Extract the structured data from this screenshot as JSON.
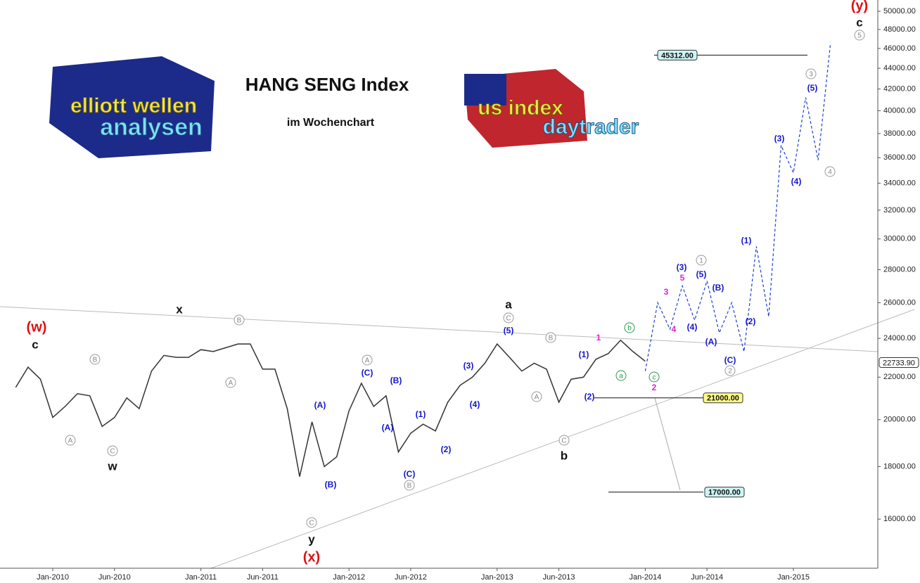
{
  "chart_data": {
    "type": "line",
    "title": "HANG SENG Index",
    "subtitle": "im Wochenchart",
    "logos": [
      [
        "elliott wellen",
        "analysen"
      ],
      [
        "us index",
        "daytrader"
      ]
    ],
    "log_scale": true,
    "ylim": [
      14330,
      51280
    ],
    "yticks": [
      {
        "value": 16000,
        "label": "16000.00"
      },
      {
        "value": 18000,
        "label": "18000.00"
      },
      {
        "value": 20000,
        "label": "20000.00"
      },
      {
        "value": 22000,
        "label": "22000.00"
      },
      {
        "value": 24000,
        "label": "24000.00"
      },
      {
        "value": 26000,
        "label": "26000.00"
      },
      {
        "value": 28000,
        "label": "28000.00"
      },
      {
        "value": 30000,
        "label": "30000.00"
      },
      {
        "value": 32000,
        "label": "32000.00"
      },
      {
        "value": 34000,
        "label": "34000.00"
      },
      {
        "value": 36000,
        "label": "36000.00"
      },
      {
        "value": 38000,
        "label": "38000.00"
      },
      {
        "value": 40000,
        "label": "40000.00"
      },
      {
        "value": 42000,
        "label": "42000.00"
      },
      {
        "value": 44000,
        "label": "44000.00"
      },
      {
        "value": 46000,
        "label": "46000.00"
      },
      {
        "value": 48000,
        "label": "48000.00"
      },
      {
        "value": 50000,
        "label": "50000.00"
      }
    ],
    "xticks": [
      {
        "value": "2010-01",
        "label": "Jan-2010"
      },
      {
        "value": "2010-06",
        "label": "Jun-2010"
      },
      {
        "value": "2011-01",
        "label": "Jan-2011"
      },
      {
        "value": "2011-06",
        "label": "Jun-2011"
      },
      {
        "value": "2012-01",
        "label": "Jan-2012"
      },
      {
        "value": "2012-06",
        "label": "Jun-2012"
      },
      {
        "value": "2013-01",
        "label": "Jan-2013"
      },
      {
        "value": "2013-06",
        "label": "Jun-2013"
      },
      {
        "value": "2014-01",
        "label": "Jan-2014"
      },
      {
        "value": "2014-06",
        "label": "Jun-2014"
      },
      {
        "value": "2015-01",
        "label": "Jan-2015"
      }
    ],
    "series": [
      {
        "color": "#333333",
        "dashed": false,
        "x": [
          "2009-10",
          "2009-11",
          "2009-12",
          "2010-01",
          "2010-02",
          "2010-03",
          "2010-04",
          "2010-05",
          "2010-06",
          "2010-07",
          "2010-08",
          "2010-09",
          "2010-10",
          "2010-11",
          "2010-12",
          "2011-01",
          "2011-02",
          "2011-03",
          "2011-04",
          "2011-05",
          "2011-06",
          "2011-07",
          "2011-08",
          "2011-09",
          "2011-10",
          "2011-11",
          "2011-12",
          "2012-01",
          "2012-02",
          "2012-03",
          "2012-04",
          "2012-05",
          "2012-06",
          "2012-07",
          "2012-08",
          "2012-09",
          "2012-10",
          "2012-11",
          "2012-12",
          "2013-01",
          "2013-02",
          "2013-03",
          "2013-04",
          "2013-05",
          "2013-06",
          "2013-07",
          "2013-08",
          "2013-09",
          "2013-10",
          "2013-11",
          "2013-12",
          "2014-01"
        ],
        "values": [
          21500,
          22500,
          21900,
          20100,
          20600,
          21200,
          21100,
          19700,
          20100,
          21000,
          20500,
          22300,
          23100,
          23000,
          23000,
          23400,
          23300,
          23500,
          23700,
          23700,
          22400,
          22400,
          20500,
          17600,
          19900,
          18000,
          18400,
          20400,
          21700,
          20600,
          21100,
          18600,
          19400,
          19800,
          19500,
          20800,
          21600,
          22000,
          22700,
          23700,
          23000,
          22300,
          22700,
          22400,
          20800,
          21900,
          22000,
          22900,
          23200,
          23900,
          23300,
          22800
        ]
      },
      {
        "color": "#1f3fd6",
        "dashed": true,
        "x": [
          "2014-01",
          "2014-02",
          "2014-03",
          "2014-04",
          "2014-05",
          "2014-06",
          "2014-07",
          "2014-08",
          "2014-09",
          "2014-10",
          "2014-11",
          "2014-12",
          "2015-01",
          "2015-02",
          "2015-03",
          "2015-04"
        ],
        "values": [
          22300,
          26000,
          24500,
          27000,
          25000,
          27300,
          24300,
          26000,
          23300,
          29500,
          25200,
          37000,
          34800,
          41200,
          35800,
          46500
        ]
      }
    ],
    "levels": [
      {
        "value": 45312,
        "label": "45312.00",
        "color": "#cdf5f5"
      },
      {
        "value": 21000,
        "label": "21000.00",
        "color": "#ffff88"
      },
      {
        "value": 17000,
        "label": "17000.00",
        "color": "#cdf5f5"
      },
      {
        "value": 22733.9,
        "label": "22733.90",
        "color": "#ffffff"
      }
    ],
    "annotations": [
      {
        "text": "(w)",
        "kind": "red"
      },
      {
        "text": "c",
        "kind": "black"
      },
      {
        "text": "w",
        "kind": "black"
      },
      {
        "text": "x",
        "kind": "black"
      },
      {
        "text": "y",
        "kind": "black"
      },
      {
        "text": "(x)",
        "kind": "red"
      },
      {
        "text": "a",
        "kind": "black"
      },
      {
        "text": "b",
        "kind": "black"
      },
      {
        "text": "(y)",
        "kind": "red"
      },
      {
        "text": "c",
        "kind": "black"
      },
      {
        "text": "A",
        "kind": "gray"
      },
      {
        "text": "B",
        "kind": "gray"
      },
      {
        "text": "C",
        "kind": "gray"
      },
      {
        "text": "B",
        "kind": "gray"
      },
      {
        "text": "A",
        "kind": "gray"
      },
      {
        "text": "C",
        "kind": "gray"
      },
      {
        "text": "A",
        "kind": "gray"
      },
      {
        "text": "B",
        "kind": "gray"
      },
      {
        "text": "C",
        "kind": "gray"
      },
      {
        "text": "B",
        "kind": "gray"
      },
      {
        "text": "A",
        "kind": "gray"
      },
      {
        "text": "C",
        "kind": "gray"
      },
      {
        "text": "1",
        "kind": "gray"
      },
      {
        "text": "2",
        "kind": "gray"
      },
      {
        "text": "3",
        "kind": "gray"
      },
      {
        "text": "4",
        "kind": "gray"
      },
      {
        "text": "5",
        "kind": "gray"
      },
      {
        "text": "(A)",
        "kind": "blue"
      },
      {
        "text": "(B)",
        "kind": "blue"
      },
      {
        "text": "(C)",
        "kind": "blue"
      },
      {
        "text": "(B)",
        "kind": "blue"
      },
      {
        "text": "(A)",
        "kind": "blue"
      },
      {
        "text": "(C)",
        "kind": "blue"
      },
      {
        "text": "(1)",
        "kind": "blue"
      },
      {
        "text": "(2)",
        "kind": "blue"
      },
      {
        "text": "(3)",
        "kind": "blue"
      },
      {
        "text": "(4)",
        "kind": "blue"
      },
      {
        "text": "(5)",
        "kind": "blue"
      },
      {
        "text": "(1)",
        "kind": "blue"
      },
      {
        "text": "(2)",
        "kind": "blue"
      },
      {
        "text": "(3)",
        "kind": "blue"
      },
      {
        "text": "(4)",
        "kind": "blue"
      },
      {
        "text": "(5)",
        "kind": "blue"
      },
      {
        "text": "(A)",
        "kind": "blue"
      },
      {
        "text": "(B)",
        "kind": "blue"
      },
      {
        "text": "(C)",
        "kind": "blue"
      },
      {
        "text": "(1)",
        "kind": "blue"
      },
      {
        "text": "(2)",
        "kind": "blue"
      },
      {
        "text": "(3)",
        "kind": "blue"
      },
      {
        "text": "(4)",
        "kind": "blue"
      },
      {
        "text": "(5)",
        "kind": "blue"
      },
      {
        "text": "1",
        "kind": "magenta"
      },
      {
        "text": "3",
        "kind": "magenta"
      },
      {
        "text": "4",
        "kind": "magenta"
      },
      {
        "text": "5",
        "kind": "magenta"
      },
      {
        "text": "2",
        "kind": "magenta"
      },
      {
        "text": "a",
        "kind": "green"
      },
      {
        "text": "b",
        "kind": "green"
      },
      {
        "text": "c",
        "kind": "green"
      }
    ]
  }
}
